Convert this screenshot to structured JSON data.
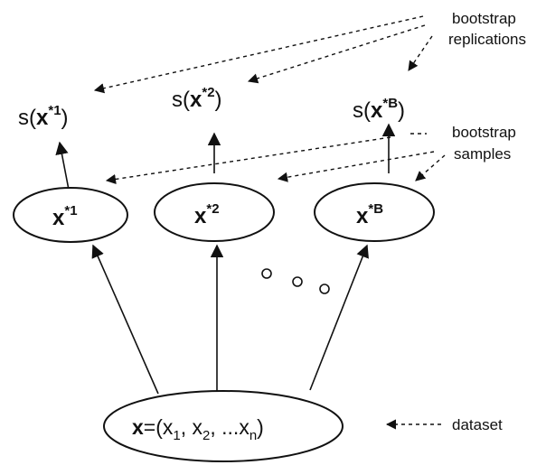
{
  "labels": {
    "bootstrap_replications": [
      "bootstrap",
      "replications"
    ],
    "bootstrap_samples": [
      "bootstrap",
      "samples"
    ],
    "dataset": "dataset"
  },
  "replications": [
    {
      "prefix": "s(",
      "var": "x",
      "sup": "*1",
      "suffix": ")"
    },
    {
      "prefix": "s(",
      "var": "x",
      "sup": "*2",
      "suffix": ")"
    },
    {
      "prefix": "s(",
      "var": "x",
      "sup": "*B",
      "suffix": ")"
    }
  ],
  "samples": [
    {
      "var": "x",
      "sup": "*1"
    },
    {
      "var": "x",
      "sup": "*2"
    },
    {
      "var": "x",
      "sup": "*B"
    }
  ],
  "dataset_formula": {
    "var": "x",
    "eq": "=(",
    "x1": "x",
    "x1_sub": "1",
    "sep1": ", ",
    "x2": "x",
    "x2_sub": "2",
    "sep2": ", ...",
    "xn": "x",
    "xn_sub": "n",
    "close": ")"
  },
  "colors": {
    "ink": "#111111"
  }
}
